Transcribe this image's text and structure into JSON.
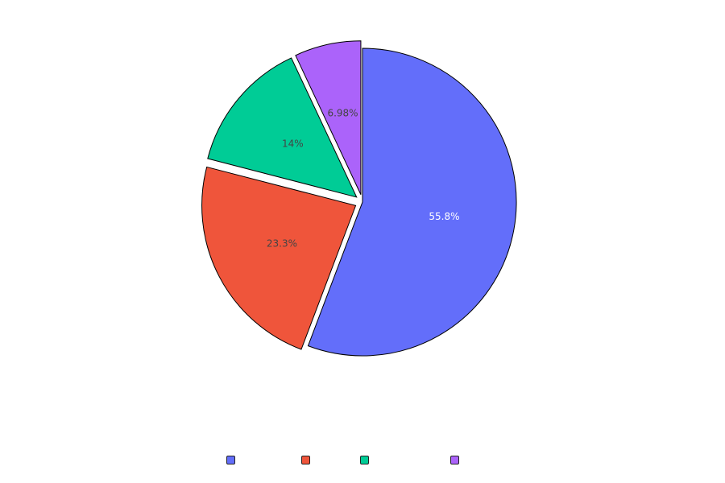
{
  "chart_data": {
    "type": "pie",
    "title": "",
    "values": [
      55.8,
      23.3,
      14.0,
      6.98
    ],
    "labels": [
      "55.8%",
      "23.3%",
      "14%",
      "6.98%"
    ],
    "series_names": [
      "",
      "",
      "",
      ""
    ],
    "colors": [
      "#636efa",
      "#ef553b",
      "#00cc96",
      "#ab63fa"
    ],
    "label_colors": [
      "#ffffff",
      "#444444",
      "#444444",
      "#444444"
    ],
    "start_angle_deg": 0,
    "direction": "clockwise",
    "exploded": [
      false,
      true,
      true,
      true
    ],
    "legend_position": "bottom"
  }
}
